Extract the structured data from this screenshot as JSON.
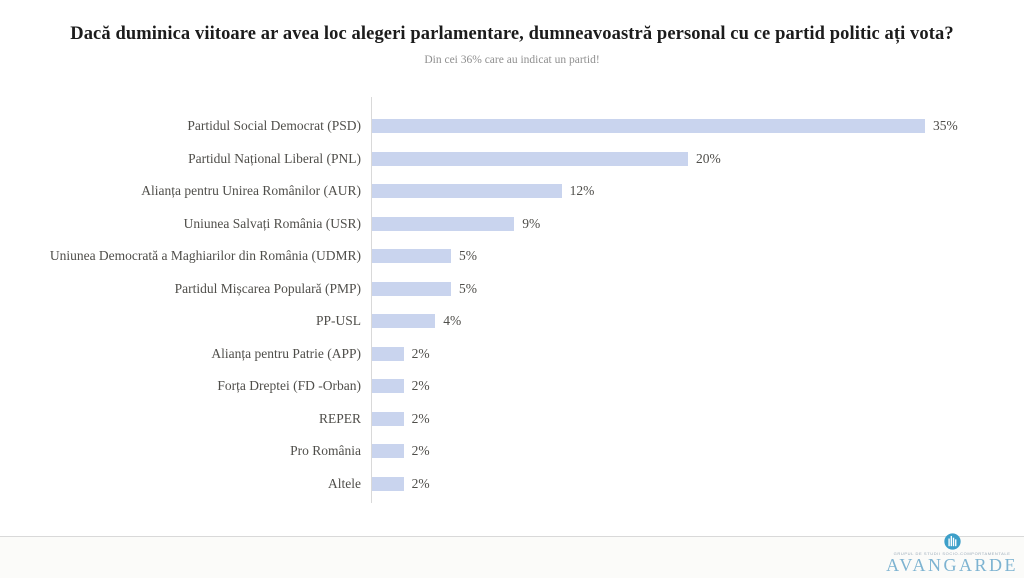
{
  "title": "Dacă duminica viitoare ar avea loc alegeri parlamentare, dumneavoastră personal cu ce partid politic ați vota?",
  "subtitle": "Din cei 36% care au indicat un partid!",
  "chart_data": {
    "type": "bar",
    "orientation": "horizontal",
    "categories": [
      "Partidul Social Democrat (PSD)",
      "Partidul Național Liberal (PNL)",
      "Alianța pentru Unirea Românilor (AUR)",
      "Uniunea Salvați România (USR)",
      "Uniunea Democrată a Maghiarilor din România (UDMR)",
      "Partidul Mișcarea Populară (PMP)",
      "PP-USL",
      "Alianța pentru Patrie (APP)",
      "Forța Dreptei (FD -Orban)",
      "REPER",
      "Pro România",
      "Altele"
    ],
    "values": [
      35,
      20,
      12,
      9,
      5,
      5,
      4,
      2,
      2,
      2,
      2,
      2
    ],
    "value_labels": [
      "35%",
      "20%",
      "12%",
      "9%",
      "5%",
      "5%",
      "4%",
      "2%",
      "2%",
      "2%",
      "2%",
      "2%"
    ],
    "xlim": [
      0,
      40
    ],
    "grid": false,
    "legend": "none",
    "data_labels": "outside-end"
  },
  "colors": {
    "bar_fill": "#c9d4ee",
    "axis_line": "#d9d9d9",
    "label_text": "#4f4e4a",
    "title_text": "#1c1c1c",
    "subtitle_text": "#8f8f8f",
    "logo_blue": "#7db3d1",
    "logo_icon_blue": "#3d9fc9"
  },
  "footer": {
    "logo_icon": "avangarde-buildings-circle-icon",
    "logo_tagline": "GRUPUL DE STUDII SOCIO-COMPORTAMENTALE",
    "logo_text": "AVANGARDE"
  }
}
